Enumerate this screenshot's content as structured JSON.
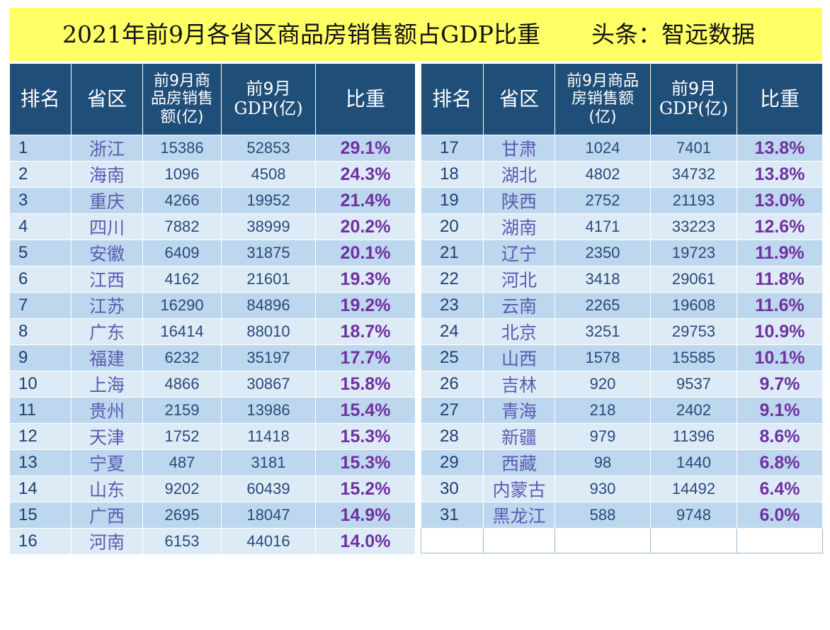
{
  "title": "2021年前9月各省区商品房销售额占GDP比重",
  "source": "头条：智远数据",
  "headers_left": {
    "rank": "排名",
    "province": "省区",
    "sales": [
      "前9月商",
      "品房销售",
      "额(亿)"
    ],
    "gdp": [
      "前9月",
      "GDP(亿)"
    ],
    "ratio": "比重"
  },
  "headers_right": {
    "rank": "排名",
    "province": "省区",
    "sales": [
      "前9月商品",
      "房销售额",
      "(亿)"
    ],
    "gdp": [
      "前9月",
      "GDP(亿)"
    ],
    "ratio": "比重"
  },
  "rows_left": [
    {
      "rank": "1",
      "province": "浙江",
      "sales": "15386",
      "gdp": "52853",
      "ratio": "29.1%"
    },
    {
      "rank": "2",
      "province": "海南",
      "sales": "1096",
      "gdp": "4508",
      "ratio": "24.3%"
    },
    {
      "rank": "3",
      "province": "重庆",
      "sales": "4266",
      "gdp": "19952",
      "ratio": "21.4%"
    },
    {
      "rank": "4",
      "province": "四川",
      "sales": "7882",
      "gdp": "38999",
      "ratio": "20.2%"
    },
    {
      "rank": "5",
      "province": "安徽",
      "sales": "6409",
      "gdp": "31875",
      "ratio": "20.1%"
    },
    {
      "rank": "6",
      "province": "江西",
      "sales": "4162",
      "gdp": "21601",
      "ratio": "19.3%"
    },
    {
      "rank": "7",
      "province": "江苏",
      "sales": "16290",
      "gdp": "84896",
      "ratio": "19.2%"
    },
    {
      "rank": "8",
      "province": "广东",
      "sales": "16414",
      "gdp": "88010",
      "ratio": "18.7%"
    },
    {
      "rank": "9",
      "province": "福建",
      "sales": "6232",
      "gdp": "35197",
      "ratio": "17.7%"
    },
    {
      "rank": "10",
      "province": "上海",
      "sales": "4866",
      "gdp": "30867",
      "ratio": "15.8%"
    },
    {
      "rank": "11",
      "province": "贵州",
      "sales": "2159",
      "gdp": "13986",
      "ratio": "15.4%"
    },
    {
      "rank": "12",
      "province": "天津",
      "sales": "1752",
      "gdp": "11418",
      "ratio": "15.3%"
    },
    {
      "rank": "13",
      "province": "宁夏",
      "sales": "487",
      "gdp": "3181",
      "ratio": "15.3%"
    },
    {
      "rank": "14",
      "province": "山东",
      "sales": "9202",
      "gdp": "60439",
      "ratio": "15.2%"
    },
    {
      "rank": "15",
      "province": "广西",
      "sales": "2695",
      "gdp": "18047",
      "ratio": "14.9%"
    },
    {
      "rank": "16",
      "province": "河南",
      "sales": "6153",
      "gdp": "44016",
      "ratio": "14.0%"
    }
  ],
  "rows_right": [
    {
      "rank": "17",
      "province": "甘肃",
      "sales": "1024",
      "gdp": "7401",
      "ratio": "13.8%"
    },
    {
      "rank": "18",
      "province": "湖北",
      "sales": "4802",
      "gdp": "34732",
      "ratio": "13.8%"
    },
    {
      "rank": "19",
      "province": "陕西",
      "sales": "2752",
      "gdp": "21193",
      "ratio": "13.0%"
    },
    {
      "rank": "20",
      "province": "湖南",
      "sales": "4171",
      "gdp": "33223",
      "ratio": "12.6%"
    },
    {
      "rank": "21",
      "province": "辽宁",
      "sales": "2350",
      "gdp": "19723",
      "ratio": "11.9%"
    },
    {
      "rank": "22",
      "province": "河北",
      "sales": "3418",
      "gdp": "29061",
      "ratio": "11.8%"
    },
    {
      "rank": "23",
      "province": "云南",
      "sales": "2265",
      "gdp": "19608",
      "ratio": "11.6%"
    },
    {
      "rank": "24",
      "province": "北京",
      "sales": "3251",
      "gdp": "29753",
      "ratio": "10.9%"
    },
    {
      "rank": "25",
      "province": "山西",
      "sales": "1578",
      "gdp": "15585",
      "ratio": "10.1%"
    },
    {
      "rank": "26",
      "province": "吉林",
      "sales": "920",
      "gdp": "9537",
      "ratio": "9.7%"
    },
    {
      "rank": "27",
      "province": "青海",
      "sales": "218",
      "gdp": "2402",
      "ratio": "9.1%"
    },
    {
      "rank": "28",
      "province": "新疆",
      "sales": "979",
      "gdp": "11396",
      "ratio": "8.6%"
    },
    {
      "rank": "29",
      "province": "西藏",
      "sales": "98",
      "gdp": "1440",
      "ratio": "6.8%"
    },
    {
      "rank": "30",
      "province": "内蒙古",
      "sales": "930",
      "gdp": "14492",
      "ratio": "6.4%"
    },
    {
      "rank": "31",
      "province": "黑龙江",
      "sales": "588",
      "gdp": "9748",
      "ratio": "6.0%"
    }
  ]
}
